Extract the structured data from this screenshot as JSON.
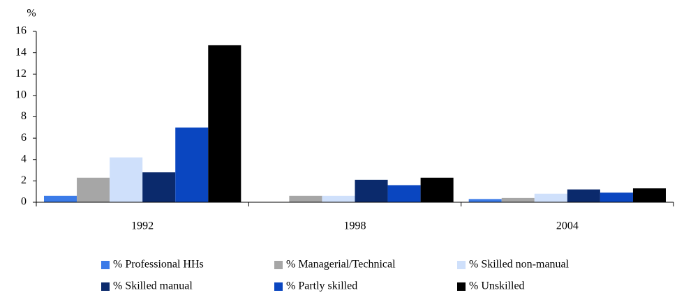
{
  "chart_data": {
    "type": "bar",
    "y_label": "%",
    "categories": [
      "1992",
      "1998",
      "2004"
    ],
    "series": [
      {
        "name": "% Professional HHs",
        "color": "#3b7be8",
        "values": [
          0.6,
          0,
          0.3
        ]
      },
      {
        "name": "% Managerial/Technical",
        "color": "#a6a6a6",
        "values": [
          2.3,
          0.6,
          0.4
        ]
      },
      {
        "name": "% Skilled non-manual",
        "color": "#cfe0fb",
        "values": [
          4.2,
          0.6,
          0.8
        ]
      },
      {
        "name": "% Skilled manual",
        "color": "#0b2a6c",
        "values": [
          2.8,
          2.1,
          1.2
        ]
      },
      {
        "name": "% Partly skilled",
        "color": "#0a46c0",
        "values": [
          7.0,
          1.6,
          0.9
        ]
      },
      {
        "name": "% Unskilled",
        "color": "#000000",
        "values": [
          14.7,
          2.3,
          1.3
        ]
      }
    ],
    "ylim": [
      0,
      16
    ],
    "yticks": [
      0,
      2,
      4,
      6,
      8,
      10,
      12,
      14,
      16
    ],
    "grid": false
  }
}
